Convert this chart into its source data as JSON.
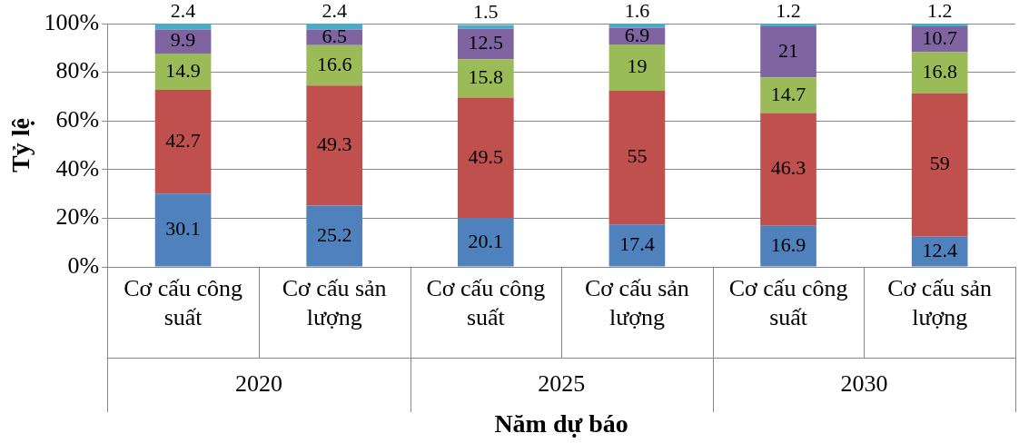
{
  "chart_data": {
    "type": "bar",
    "stacked": true,
    "ylabel": "Tỷ lệ",
    "xlabel": "Năm dự báo",
    "categories": [
      "Cơ cấu công suất",
      "Cơ cấu sản lượng",
      "Cơ cấu công suất",
      "Cơ cấu sản lượng",
      "Cơ cấu công suất",
      "Cơ cấu sản lượng"
    ],
    "annotations": [
      "2020",
      "2025",
      "2030"
    ],
    "series": [
      {
        "color": "#4f81bd",
        "values": [
          30.1,
          25.2,
          20.1,
          17.4,
          16.9,
          12.4
        ]
      },
      {
        "color": "#c0504d",
        "values": [
          42.7,
          49.3,
          49.5,
          55,
          46.3,
          59
        ]
      },
      {
        "color": "#9bbb59",
        "values": [
          14.9,
          16.6,
          15.8,
          19,
          14.7,
          16.8
        ]
      },
      {
        "color": "#8064a2",
        "values": [
          9.9,
          6.5,
          12.5,
          6.9,
          21,
          10.7
        ]
      },
      {
        "color": "#4bacc6",
        "values": [
          2.4,
          2.4,
          1.5,
          1.6,
          1.2,
          1.2
        ]
      }
    ],
    "ylim": [
      0,
      100
    ],
    "yticks": [
      {
        "value": 0,
        "label": "0%"
      },
      {
        "value": 20,
        "label": "20%"
      },
      {
        "value": 40,
        "label": "40%"
      },
      {
        "value": 60,
        "label": "60%"
      },
      {
        "value": 80,
        "label": "80%"
      },
      {
        "value": 100,
        "label": "100%"
      }
    ],
    "grid": "y",
    "data_labels": true,
    "legend": false
  }
}
